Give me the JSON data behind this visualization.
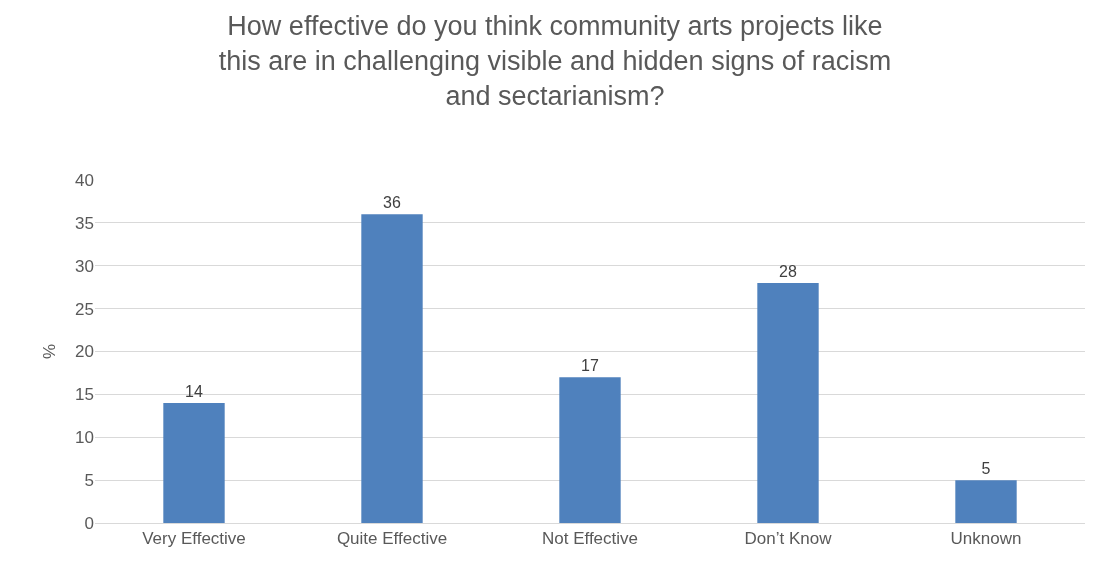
{
  "chart_data": {
    "type": "bar",
    "title": "How effective do you think community arts projects like\nthis are in challenging visible and hidden signs of racism\nand sectarianism?",
    "ylabel": "%",
    "categories": [
      "Very Effective",
      "Quite Effective",
      "Not Effective",
      "Don’t Know",
      "Unknown"
    ],
    "values": [
      14,
      36,
      17,
      28,
      5
    ],
    "color": "#4f81bd",
    "ylim": [
      0,
      40
    ],
    "yticks": [
      0,
      5,
      10,
      15,
      20,
      25,
      30,
      35,
      40
    ],
    "grid": "y",
    "data_labels": true
  }
}
